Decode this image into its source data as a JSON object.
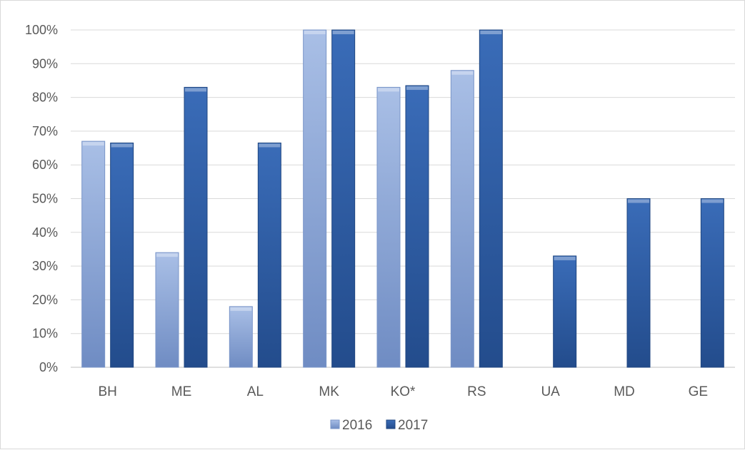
{
  "chart_data": {
    "type": "bar",
    "title": "",
    "xlabel": "",
    "ylabel": "",
    "categories": [
      "BH",
      "ME",
      "AL",
      "MK",
      "KO*",
      "RS",
      "UA",
      "MD",
      "GE"
    ],
    "series": [
      {
        "name": "2016",
        "color": "#8ea9db",
        "values": [
          0.67,
          0.34,
          0.18,
          1.0,
          0.83,
          0.88,
          null,
          null,
          null
        ]
      },
      {
        "name": "2017",
        "color": "#2e5ea6",
        "values": [
          0.665,
          0.83,
          0.665,
          1.0,
          0.835,
          1.0,
          0.33,
          0.5,
          0.5
        ]
      }
    ],
    "ylim": [
      0,
      1
    ],
    "yticks": [
      "0%",
      "10%",
      "20%",
      "30%",
      "40%",
      "50%",
      "60%",
      "70%",
      "80%",
      "90%",
      "100%"
    ],
    "grid": true,
    "legend_position": "bottom"
  }
}
